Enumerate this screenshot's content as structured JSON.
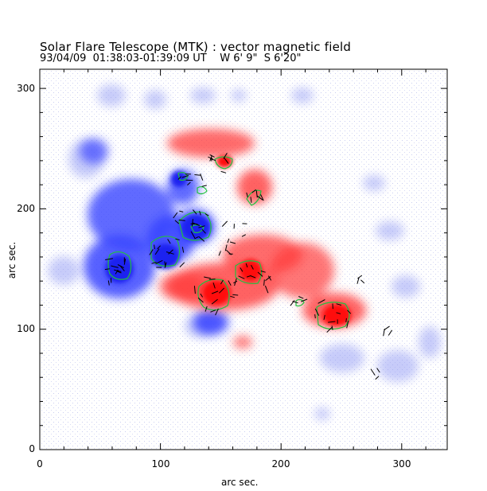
{
  "header": {
    "title": "Solar Flare Telescope (MTK) : vector magnetic field",
    "subtitle": "93/04/09  01:38:03-01:39:09 UT    W 6' 9\"  S 6'20\""
  },
  "axes": {
    "xlabel": "arc sec.",
    "ylabel": "arc sec.",
    "xticks": [
      "0",
      "100",
      "200",
      "300"
    ],
    "yticks": [
      "0",
      "100",
      "200",
      "300"
    ],
    "xlim": [
      0,
      340
    ],
    "ylim": [
      0,
      315
    ]
  },
  "colors": {
    "positive_polarity": "#ff3b3b",
    "negative_polarity": "#3a46ff",
    "contour": "#20c040",
    "vectors": "#000000",
    "noise": "#c8ccf0"
  }
}
